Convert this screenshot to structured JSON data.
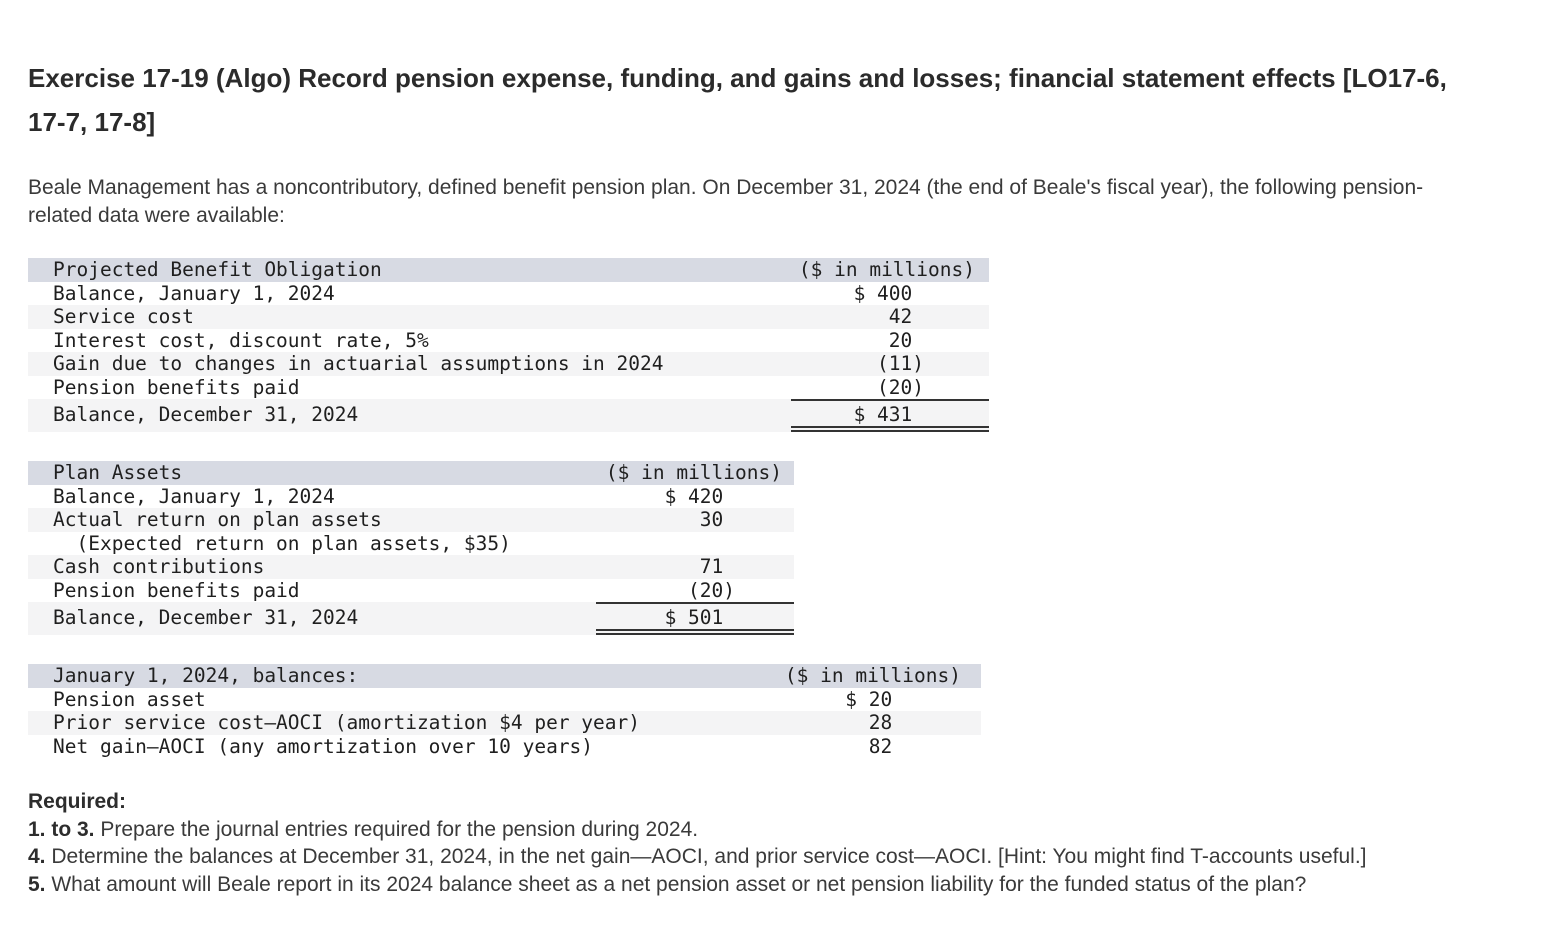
{
  "page": {
    "title": "Exercise 17-19 (Algo) Record pension expense, funding, and gains and losses; financial statement effects [LO17-6, 17-7, 17-8]",
    "intro": "Beale Management has a noncontributory, defined benefit pension plan. On December 31, 2024 (the end of Beale's fiscal year), the following pension-related data were available:"
  },
  "tables": {
    "pbo": {
      "header_label": "Projected Benefit Obligation",
      "header_unit": "($ in millions)",
      "rows": [
        {
          "label": "Balance, January 1, 2024",
          "value": "$ 400"
        },
        {
          "label": "Service cost",
          "value": "42"
        },
        {
          "label": "Interest cost, discount rate, 5%",
          "value": "20"
        },
        {
          "label": "Gain due to changes in actuarial assumptions in 2024",
          "value": "(11)"
        },
        {
          "label": "Pension benefits paid",
          "value": "(20)"
        }
      ],
      "total": {
        "label": "Balance, December 31, 2024",
        "value": "$ 431"
      }
    },
    "plan_assets": {
      "header_label": "Plan Assets",
      "header_unit": "($ in millions)",
      "rows": [
        {
          "label": "Balance, January 1, 2024",
          "value": "$ 420"
        },
        {
          "label": "Actual return on plan assets",
          "value": "30"
        },
        {
          "label": "  (Expected return on plan assets, $35)",
          "value": ""
        },
        {
          "label": "Cash contributions",
          "value": "71"
        },
        {
          "label": "Pension benefits paid",
          "value": "(20)"
        }
      ],
      "total": {
        "label": "Balance, December 31, 2024",
        "value": "$ 501"
      }
    },
    "jan1_balances": {
      "header_label": "January 1, 2024, balances:",
      "header_unit": "($ in millions)",
      "rows": [
        {
          "label": "Pension asset",
          "value": "$ 20"
        },
        {
          "label": "Prior service cost—AOCI (amortization $4 per year)",
          "value": "28"
        },
        {
          "label": "Net gain—AOCI (any amortization over 10 years)",
          "value": "82"
        }
      ]
    }
  },
  "required": {
    "heading": "Required:",
    "items": [
      {
        "lead": "1. to 3.",
        "text": "Prepare the journal entries required for the pension during 2024."
      },
      {
        "lead": "4.",
        "text": "Determine the balances at December 31, 2024, in the net gain—AOCI, and prior service cost—AOCI. [Hint: You might find T-accounts useful.]"
      },
      {
        "lead": "5.",
        "text": "What amount will Beale report in its 2024 balance sheet as a net pension asset or net pension liability for the funded status of the plan?"
      }
    ]
  },
  "colors": {
    "header_bg": "#d7dae3",
    "stripe_bg": "#f4f4f5",
    "rule": "#333333"
  }
}
